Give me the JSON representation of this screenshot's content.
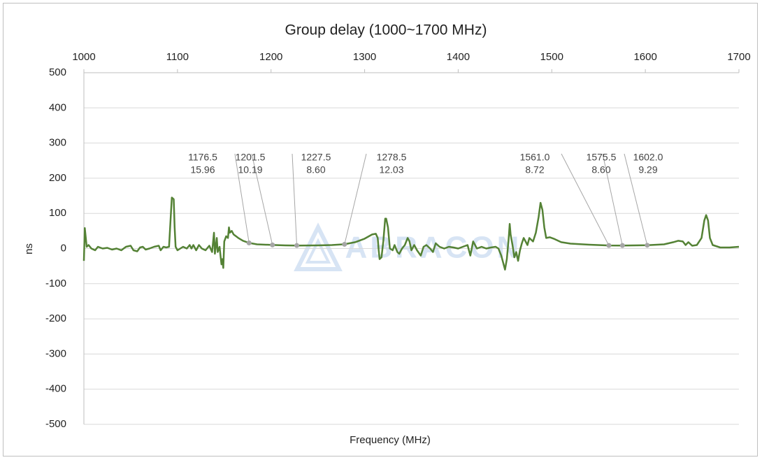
{
  "chart_data": {
    "type": "line",
    "title": "Group delay (1000~1700 MHz)",
    "x_label": "Frequency (MHz)",
    "y_label": "ns",
    "watermark": "ABRACON",
    "xlim": [
      1000,
      1700
    ],
    "xticks": [
      1000,
      1100,
      1200,
      1300,
      1400,
      1500,
      1600,
      1700
    ],
    "ylim": [
      -500,
      500
    ],
    "yticks": [
      -500,
      -400,
      -300,
      -200,
      -100,
      0,
      100,
      200,
      300,
      400,
      500
    ],
    "grid": true,
    "series": [
      {
        "name": "Group delay",
        "color": "#548235",
        "x": [
          1000,
          1001,
          1003,
          1005,
          1008,
          1012,
          1015,
          1020,
          1025,
          1030,
          1035,
          1040,
          1045,
          1050,
          1053,
          1057,
          1060,
          1063,
          1066,
          1070,
          1075,
          1080,
          1082,
          1085,
          1088,
          1091,
          1093,
          1094,
          1096,
          1097,
          1098,
          1100,
          1103,
          1106,
          1110,
          1113,
          1115,
          1117,
          1120,
          1123,
          1126,
          1130,
          1134,
          1137,
          1139,
          1140,
          1142,
          1143,
          1145,
          1146,
          1147,
          1148,
          1149,
          1150,
          1152,
          1154,
          1155,
          1156,
          1158,
          1160,
          1165,
          1170,
          1176.5,
          1185,
          1201.5,
          1215,
          1227.5,
          1250,
          1265,
          1278.5,
          1290,
          1300,
          1308,
          1312,
          1314,
          1315,
          1316,
          1318,
          1320,
          1322,
          1323,
          1325,
          1327,
          1330,
          1332,
          1335,
          1337,
          1340,
          1343,
          1346,
          1348,
          1350,
          1353,
          1356,
          1360,
          1363,
          1366,
          1370,
          1373,
          1376,
          1380,
          1385,
          1390,
          1395,
          1400,
          1405,
          1410,
          1413,
          1416,
          1420,
          1425,
          1430,
          1435,
          1440,
          1443,
          1446,
          1448,
          1450,
          1452,
          1454,
          1455,
          1456,
          1458,
          1460,
          1462,
          1464,
          1466,
          1468,
          1470,
          1472,
          1474,
          1476,
          1478,
          1480,
          1483,
          1486,
          1488,
          1490,
          1492,
          1494,
          1498,
          1502,
          1510,
          1520,
          1540,
          1561,
          1575.5,
          1602,
          1620,
          1630,
          1635,
          1640,
          1643,
          1646,
          1650,
          1655,
          1660,
          1663,
          1665,
          1667,
          1669,
          1672,
          1680,
          1690,
          1700
        ],
        "values": [
          -35,
          58,
          5,
          10,
          0,
          -5,
          5,
          0,
          2,
          -3,
          0,
          -5,
          5,
          8,
          -5,
          -8,
          3,
          5,
          -3,
          0,
          5,
          8,
          -5,
          5,
          3,
          5,
          100,
          145,
          140,
          60,
          5,
          -5,
          0,
          5,
          0,
          10,
          0,
          10,
          -5,
          10,
          0,
          -5,
          8,
          -10,
          45,
          -15,
          30,
          -10,
          5,
          -20,
          -45,
          -30,
          -55,
          20,
          35,
          30,
          60,
          45,
          50,
          40,
          30,
          22,
          15.96,
          12,
          10.19,
          9,
          8.6,
          9,
          10,
          12.03,
          18,
          28,
          40,
          42,
          30,
          -5,
          -30,
          -25,
          20,
          85,
          85,
          60,
          0,
          -5,
          10,
          -10,
          -15,
          0,
          10,
          30,
          20,
          -5,
          10,
          -5,
          -20,
          5,
          10,
          0,
          -10,
          15,
          5,
          0,
          5,
          3,
          0,
          5,
          10,
          -20,
          20,
          0,
          5,
          0,
          3,
          5,
          0,
          -20,
          -40,
          -60,
          -30,
          30,
          70,
          40,
          10,
          -25,
          -10,
          -35,
          -5,
          15,
          30,
          20,
          10,
          30,
          25,
          20,
          45,
          90,
          130,
          110,
          60,
          30,
          32,
          28,
          18,
          14,
          11,
          8.72,
          8.6,
          9.29,
          12,
          18,
          22,
          20,
          10,
          18,
          8,
          10,
          30,
          80,
          95,
          80,
          30,
          10,
          3,
          3,
          5
        ]
      }
    ],
    "annotations": [
      {
        "x": 1176.5,
        "y": 15.96,
        "x_label": "1176.5",
        "y_label": "15.96"
      },
      {
        "x": 1201.5,
        "y": 10.19,
        "x_label": "1201.5",
        "y_label": "10.19"
      },
      {
        "x": 1227.5,
        "y": 8.6,
        "x_label": "1227.5",
        "y_label": "8.60"
      },
      {
        "x": 1278.5,
        "y": 12.03,
        "x_label": "1278.5",
        "y_label": "12.03"
      },
      {
        "x": 1561.0,
        "y": 8.72,
        "x_label": "1561.0",
        "y_label": "8.72"
      },
      {
        "x": 1575.5,
        "y": 8.6,
        "x_label": "1575.5",
        "y_label": "8.60"
      },
      {
        "x": 1602.0,
        "y": 9.29,
        "x_label": "1602.0",
        "y_label": "9.29"
      }
    ]
  }
}
